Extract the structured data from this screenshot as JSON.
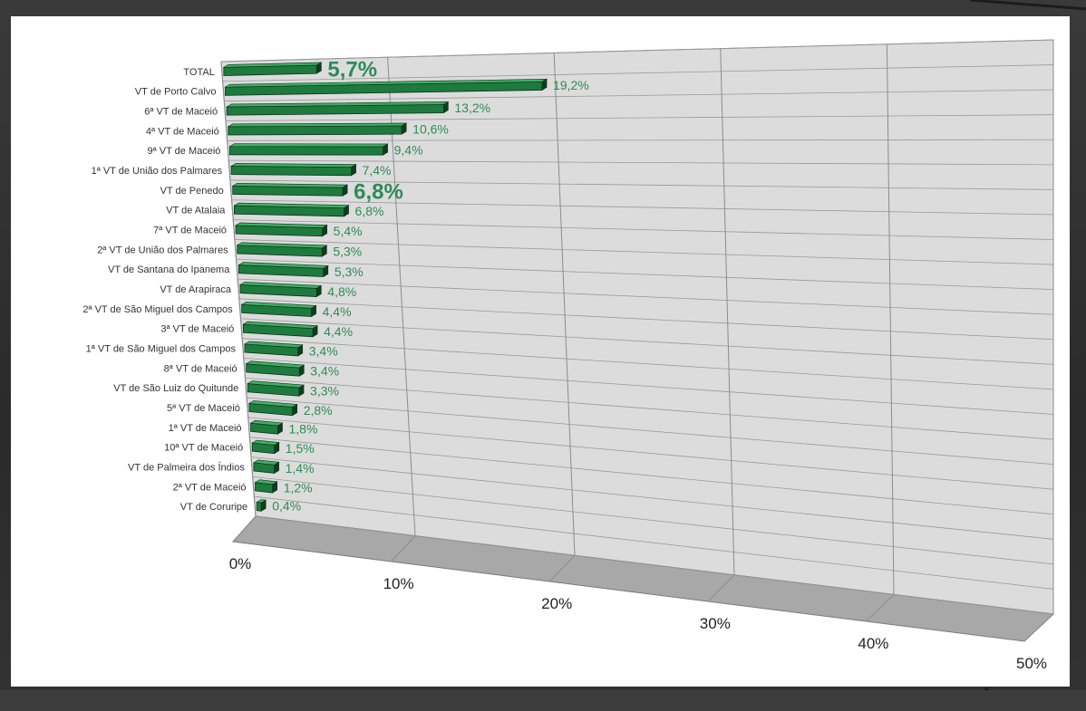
{
  "chart_data": {
    "type": "bar",
    "orientation": "horizontal",
    "perspective": "3d",
    "categories": [
      "TOTAL",
      "VT de Porto Calvo",
      "6ª VT de Maceió",
      "4ª VT de Maceió",
      "9ª VT de Maceió",
      "1ª VT de União dos Palmares",
      "VT de Penedo",
      "VT de Atalaia",
      "7ª VT de Maceió",
      "2ª VT de União dos Palmares",
      "VT de Santana do Ipanema",
      "VT de Arapiraca",
      "2ª VT de São Miguel dos Campos",
      "3ª VT de Maceió",
      "1ª VT de São Miguel dos Campos",
      "8ª VT de Maceió",
      "VT de São Luiz do Quitunde",
      "5ª VT de Maceió",
      "1ª VT de Maceió",
      "10ª VT de Maceió",
      "VT de Palmeira dos Índios",
      "2ª VT de Maceió",
      "VT de Coruripe"
    ],
    "values": [
      5.7,
      19.2,
      13.2,
      10.6,
      9.4,
      7.4,
      6.8,
      6.8,
      5.4,
      5.3,
      5.3,
      4.8,
      4.4,
      4.4,
      3.4,
      3.4,
      3.3,
      2.8,
      1.8,
      1.5,
      1.4,
      1.2,
      0.4
    ],
    "value_labels": [
      "5,7%",
      "19,2%",
      "13,2%",
      "10,6%",
      "9,4%",
      "7,4%",
      "6,8%",
      "6,8%",
      "5,4%",
      "5,3%",
      "5,3%",
      "4,8%",
      "4,4%",
      "4,4%",
      "3,4%",
      "3,4%",
      "3,3%",
      "2,8%",
      "1,8%",
      "1,5%",
      "1,4%",
      "1,2%",
      "0,4%"
    ],
    "highlighted_labels": [
      0,
      6
    ],
    "x_ticks": [
      "0%",
      "10%",
      "20%",
      "30%",
      "40%",
      "50%"
    ],
    "xlim": [
      0,
      50
    ],
    "grid": true,
    "legend": "none",
    "colors": {
      "bar_front": "#1e7a3e",
      "bar_top": "#3fae63",
      "bar_side": "#0d3d1d",
      "label_green": "#2e8b57",
      "wall": "#dcdcdc",
      "floor": "#a8a8a8",
      "grid": "#8c8c8c"
    }
  }
}
